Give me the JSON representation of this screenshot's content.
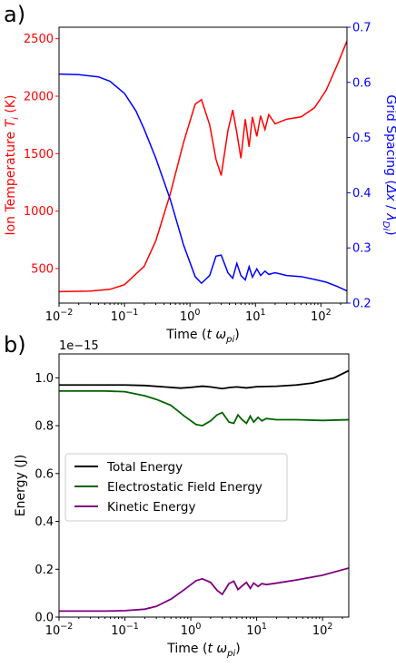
{
  "colors": {
    "red": "#ff0000",
    "blue": "#0000ff",
    "black": "#000000",
    "green": "#006400",
    "purple": "#800080"
  },
  "chart_data": [
    {
      "type": "line",
      "panel_label": "a)",
      "xlabel": "Time ($t\\,\\omega_{pi}$)",
      "xlabel_parts": [
        "Time (",
        "t ω",
        "pi",
        ")"
      ],
      "xscale": "log",
      "xlim": [
        0.01,
        250
      ],
      "x_ticks": [
        0.01,
        0.1,
        1,
        10,
        100
      ],
      "x_tick_labels": [
        {
          "base": "10",
          "exp": "−2"
        },
        {
          "base": "10",
          "exp": "−1"
        },
        {
          "base": "10",
          "exp": "0"
        },
        {
          "base": "10",
          "exp": "1"
        },
        {
          "base": "10",
          "exp": "2"
        }
      ],
      "left_axis": {
        "label_parts": [
          "Ion Temperature ",
          "T",
          "i",
          " (K)"
        ],
        "ylim": [
          200,
          2600
        ],
        "ticks": [
          500,
          1000,
          1500,
          2000,
          2500
        ],
        "tick_labels": [
          "500",
          "1000",
          "1500",
          "2000",
          "2500"
        ],
        "color": "#ff0000"
      },
      "right_axis": {
        "label_parts": [
          "Grid Spacing (",
          "Δx",
          " / ",
          "λ",
          "Di",
          ")"
        ],
        "ylim": [
          0.2,
          0.7
        ],
        "ticks": [
          0.2,
          0.3,
          0.4,
          0.5,
          0.6,
          0.7
        ],
        "tick_labels": [
          "0.2",
          "0.3",
          "0.4",
          "0.5",
          "0.6",
          "0.7"
        ],
        "color": "#0000ff"
      },
      "series": [
        {
          "axis": "left",
          "color": "#ff0000",
          "x": [
            0.01,
            0.03,
            0.06,
            0.1,
            0.2,
            0.3,
            0.5,
            0.8,
            1.2,
            1.5,
            2.0,
            2.5,
            3.0,
            3.8,
            4.5,
            5.2,
            6.0,
            7.0,
            8.0,
            9.0,
            10.5,
            12,
            14,
            16,
            20,
            30,
            50,
            80,
            120,
            180,
            250
          ],
          "y": [
            300,
            305,
            320,
            360,
            520,
            740,
            1150,
            1600,
            1930,
            1970,
            1750,
            1450,
            1310,
            1700,
            1880,
            1680,
            1460,
            1800,
            1560,
            1820,
            1650,
            1830,
            1710,
            1840,
            1760,
            1800,
            1820,
            1900,
            2050,
            2280,
            2480
          ]
        },
        {
          "axis": "right",
          "color": "#0000ff",
          "x": [
            0.01,
            0.02,
            0.04,
            0.06,
            0.1,
            0.15,
            0.2,
            0.3,
            0.5,
            0.8,
            1.2,
            1.5,
            2.0,
            2.5,
            3.0,
            3.8,
            4.5,
            5.2,
            6.0,
            7.0,
            8.0,
            9.0,
            10.5,
            12,
            14,
            16,
            20,
            30,
            50,
            80,
            120,
            180,
            250
          ],
          "y": [
            0.615,
            0.614,
            0.61,
            0.602,
            0.58,
            0.548,
            0.515,
            0.463,
            0.388,
            0.305,
            0.248,
            0.236,
            0.25,
            0.285,
            0.287,
            0.255,
            0.245,
            0.272,
            0.25,
            0.242,
            0.266,
            0.247,
            0.262,
            0.25,
            0.258,
            0.252,
            0.255,
            0.25,
            0.248,
            0.243,
            0.238,
            0.23,
            0.222
          ]
        }
      ]
    },
    {
      "type": "line",
      "panel_label": "b)",
      "xlabel_parts": [
        "Time (",
        "t ω",
        "pi",
        ")"
      ],
      "xscale": "log",
      "xlim": [
        0.01,
        250
      ],
      "x_ticks": [
        0.01,
        0.1,
        1,
        10,
        100
      ],
      "x_tick_labels": [
        {
          "base": "10",
          "exp": "−2"
        },
        {
          "base": "10",
          "exp": "−1"
        },
        {
          "base": "10",
          "exp": "0"
        },
        {
          "base": "10",
          "exp": "1"
        },
        {
          "base": "10",
          "exp": "2"
        }
      ],
      "ylabel": "Energy (J)",
      "ylim": [
        0,
        1.1e-15
      ],
      "y_ticks": [
        0,
        2e-16,
        4e-16,
        6e-16,
        8e-16,
        1e-15
      ],
      "y_tick_labels": [
        "0.0",
        "0.2",
        "0.4",
        "0.6",
        "0.8",
        "1.0"
      ],
      "offset_text": "1e−15",
      "legend": {
        "placement": "center-left",
        "entries": [
          "Total Energy",
          "Electrostatic Field Energy",
          "Kinetic Energy"
        ]
      },
      "series": [
        {
          "name": "Total Energy",
          "color": "#000000",
          "x": [
            0.01,
            0.05,
            0.1,
            0.2,
            0.4,
            0.7,
            1.0,
            1.5,
            2.0,
            3.0,
            4.0,
            5.0,
            7.0,
            10,
            20,
            40,
            70,
            100,
            150,
            250
          ],
          "y": [
            9.7e-16,
            9.7e-16,
            9.7e-16,
            9.68e-16,
            9.62e-16,
            9.57e-16,
            9.6e-16,
            9.65e-16,
            9.62e-16,
            9.55e-16,
            9.6e-16,
            9.62e-16,
            9.58e-16,
            9.63e-16,
            9.65e-16,
            9.7e-16,
            9.78e-16,
            9.88e-16,
            1e-15,
            1.03e-15
          ]
        },
        {
          "name": "Electrostatic Field Energy",
          "color": "#006400",
          "x": [
            0.01,
            0.05,
            0.1,
            0.2,
            0.3,
            0.5,
            0.8,
            1.2,
            1.5,
            2.0,
            2.5,
            3.0,
            3.8,
            4.5,
            5.2,
            6.0,
            7.0,
            8.0,
            9.0,
            10.5,
            12,
            14,
            20,
            40,
            100,
            250
          ],
          "y": [
            9.45e-16,
            9.45e-16,
            9.42e-16,
            9.25e-16,
            9.1e-16,
            8.85e-16,
            8.4e-16,
            8.05e-16,
            8e-16,
            8.2e-16,
            8.45e-16,
            8.55e-16,
            8.15e-16,
            8.1e-16,
            8.45e-16,
            8.25e-16,
            8.1e-16,
            8.4e-16,
            8.15e-16,
            8.35e-16,
            8.2e-16,
            8.3e-16,
            8.25e-16,
            8.25e-16,
            8.22e-16,
            8.25e-16
          ]
        },
        {
          "name": "Kinetic Energy",
          "color": "#800080",
          "x": [
            0.01,
            0.05,
            0.1,
            0.2,
            0.3,
            0.5,
            0.8,
            1.2,
            1.5,
            2.0,
            2.5,
            3.0,
            3.8,
            4.5,
            5.2,
            6.0,
            7.0,
            8.0,
            9.0,
            10.5,
            12,
            14,
            20,
            40,
            100,
            250
          ],
          "y": [
            2.5e-17,
            2.5e-17,
            2.7e-17,
            3.3e-17,
            4.5e-17,
            7.5e-17,
            1.15e-16,
            1.52e-16,
            1.6e-16,
            1.45e-16,
            1.12e-16,
            9.5e-17,
            1.4e-16,
            1.5e-16,
            1.15e-16,
            1.3e-16,
            1.45e-16,
            1.2e-16,
            1.42e-16,
            1.28e-16,
            1.4e-16,
            1.36e-16,
            1.42e-16,
            1.55e-16,
            1.75e-16,
            2.05e-16
          ]
        }
      ]
    }
  ]
}
